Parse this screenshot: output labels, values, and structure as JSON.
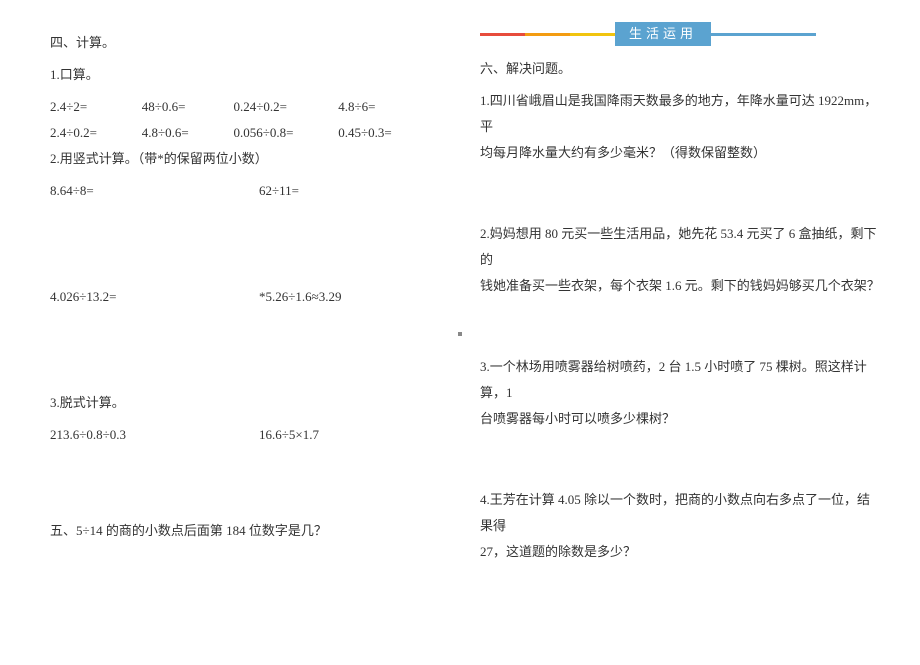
{
  "left": {
    "sec4_title": "四、计算。",
    "p1_title": "1.口算。",
    "oral_rows": [
      [
        "2.4÷2=",
        "48÷0.6=",
        "0.24÷0.2=",
        "4.8÷6="
      ],
      [
        "2.4÷0.2=",
        "4.8÷0.6=",
        "0.056÷0.8=",
        "0.45÷0.3="
      ]
    ],
    "p2_title": "2.用竖式计算。（带*的保留两位小数）",
    "vert_rows": [
      [
        "8.64÷8=",
        "62÷11="
      ],
      [
        "4.026÷13.2=",
        "*5.26÷1.6≈3.29"
      ]
    ],
    "p3_title": "3.脱式计算。",
    "strip_row": [
      "213.6÷0.8÷0.3",
      "16.6÷5×1.7"
    ],
    "sec5_title": "五、5÷14 的商的小数点后面第 184 位数字是几？"
  },
  "right": {
    "banner_label": "生活运用",
    "banner_colors": {
      "red": "#e74c3c",
      "orange": "#f39c12",
      "yellow": "#f1c40f",
      "blue": "#5ba3d0"
    },
    "sec6_title": "六、解决问题。",
    "q1_l1": "1.四川省峨眉山是我国降雨天数最多的地方，年降水量可达 1922mm，平",
    "q1_l2": "均每月降水量大约有多少毫米？（得数保留整数）",
    "q2_l1": "2.妈妈想用 80 元买一些生活用品，她先花 53.4 元买了 6 盒抽纸，剩下的",
    "q2_l2": "钱她准备买一些衣架，每个衣架 1.6 元。剩下的钱妈妈够买几个衣架？",
    "q3_l1": "3.一个林场用喷雾器给树喷药，2 台 1.5 小时喷了 75 棵树。照这样计算，1",
    "q3_l2": "台喷雾器每小时可以喷多少棵树？",
    "q4_l1": "4.王芳在计算 4.05 除以一个数时，把商的小数点向右多点了一位，结果得",
    "q4_l2": "27，这道题的除数是多少？"
  }
}
